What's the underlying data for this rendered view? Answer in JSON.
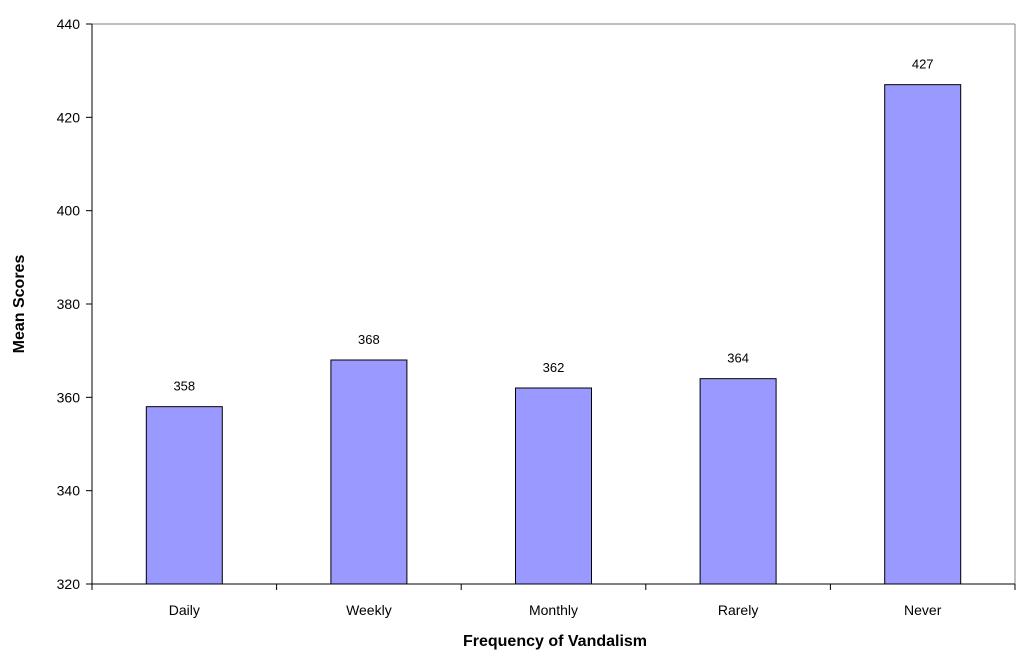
{
  "chart_data": {
    "type": "bar",
    "categories": [
      "Daily",
      "Weekly",
      "Monthly",
      "Rarely",
      "Never"
    ],
    "values": [
      358,
      368,
      362,
      364,
      427
    ],
    "data_labels": [
      "358",
      "368",
      "362",
      "364",
      "427"
    ],
    "title": "",
    "xlabel": "Frequency of Vandalism",
    "ylabel": "Mean Scores",
    "ylim": [
      320,
      440
    ],
    "yticks": [
      320,
      340,
      360,
      380,
      400,
      420,
      440
    ],
    "ytick_labels": [
      "320",
      "340",
      "360",
      "380",
      "400",
      "420",
      "440"
    ],
    "grid": false,
    "legend": "none",
    "colors": {
      "bar_fill": "#9999ff",
      "bar_stroke": "#000000",
      "axis": "#000000",
      "plot_border": "#808080"
    }
  }
}
